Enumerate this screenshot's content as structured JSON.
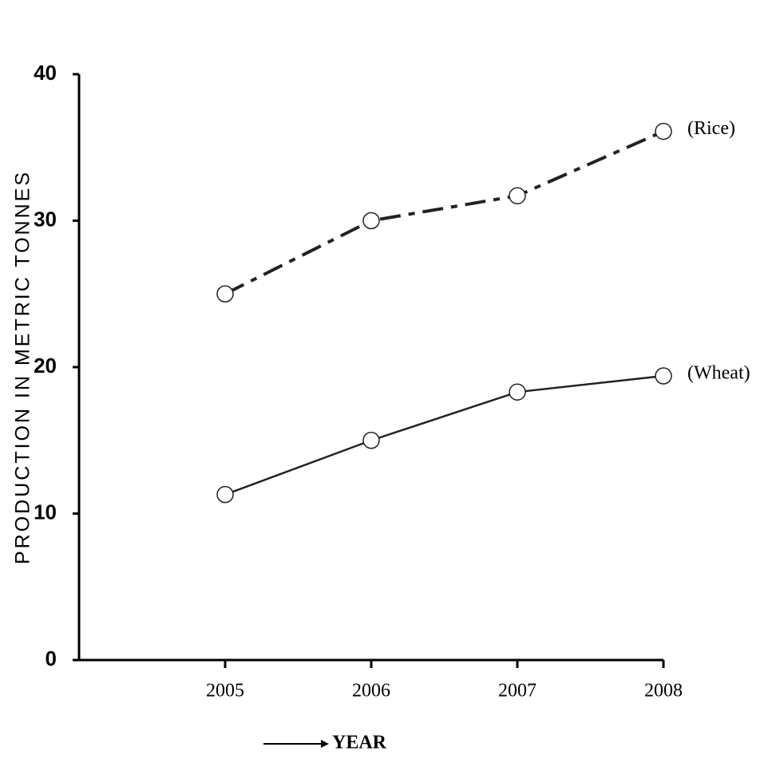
{
  "chart_data": {
    "type": "line",
    "y_label": "PRODUCTION IN METRIC TONNES",
    "x_label": "YEAR",
    "x": [
      2005,
      2006,
      2007,
      2008
    ],
    "series": [
      {
        "name": "(Rice)",
        "color": "#222222",
        "line_style": "dashed",
        "values": [
          25,
          30,
          31.7,
          36.1
        ]
      },
      {
        "name": "(Wheat)",
        "color": "#222222",
        "line_style": "solid",
        "values": [
          11.3,
          15,
          18.3,
          19.4
        ]
      }
    ],
    "xlim": [
      2004,
      2008
    ],
    "xticks": [
      2005,
      2006,
      2007,
      2008
    ],
    "ylim": [
      0,
      40
    ],
    "yticks": [
      0,
      10,
      20,
      30,
      40
    ]
  }
}
